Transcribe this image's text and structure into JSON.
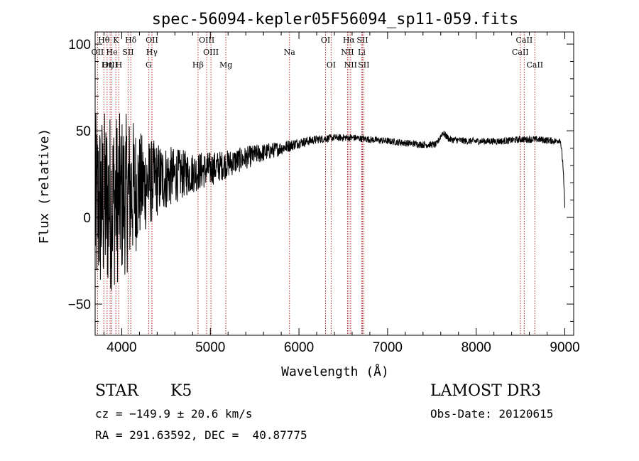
{
  "chart_data": {
    "type": "line",
    "title": "spec-56094-kepler05F56094_sp11-059.fits",
    "xlabel": "Wavelength (Å)",
    "ylabel": "Flux (relative)",
    "xlim": [
      3700,
      9100
    ],
    "ylim": [
      -68,
      107
    ],
    "xticks": [
      4000,
      5000,
      6000,
      7000,
      8000,
      9000
    ],
    "yticks": [
      -50,
      0,
      50,
      100
    ],
    "x_minor_step": 200,
    "y_minor_step": 10,
    "line_color": "#000000",
    "marker_color": "#b22222",
    "grid": false,
    "spectrum_anchors": {
      "x": [
        3700,
        3800,
        3900,
        4000,
        4100,
        4200,
        4300,
        4400,
        4600,
        4800,
        5000,
        5200,
        5500,
        5800,
        6000,
        6200,
        6400,
        6600,
        6800,
        7000,
        7200,
        7400,
        7550,
        7620,
        7700,
        7900,
        8100,
        8300,
        8500,
        8700,
        8900,
        8950,
        8980,
        9000
      ],
      "y": [
        5,
        8,
        10,
        12,
        15,
        18,
        20,
        22,
        24,
        26,
        28,
        31,
        36,
        40,
        43,
        45,
        46,
        46,
        45,
        44,
        43,
        42,
        42,
        49,
        45,
        44,
        44,
        44,
        45,
        45,
        44,
        45,
        30,
        5
      ],
      "noise": [
        55,
        55,
        52,
        48,
        45,
        32,
        26,
        22,
        16,
        12,
        10,
        8,
        6,
        4,
        3,
        2.5,
        2,
        2,
        2,
        2,
        2,
        2,
        2,
        2,
        2,
        2,
        2,
        2,
        2,
        2,
        2,
        2,
        2,
        2
      ]
    },
    "spectrum_samples": 1800,
    "line_markers": [
      {
        "label": "Hθ",
        "x": 3798,
        "row": 0
      },
      {
        "label": "K",
        "x": 3934,
        "row": 0
      },
      {
        "label": "Hδ",
        "x": 4102,
        "row": 0
      },
      {
        "label": "OII",
        "x": 4341,
        "row": 0
      },
      {
        "label": "OIII",
        "x": 4959,
        "row": 0
      },
      {
        "label": "OI",
        "x": 6300,
        "row": 0
      },
      {
        "label": "Hα",
        "x": 6563,
        "row": 0
      },
      {
        "label": "SII",
        "x": 6716,
        "row": 0
      },
      {
        "label": "CaII",
        "x": 8542,
        "row": 0
      },
      {
        "label": "OII",
        "x": 3727,
        "row": 1
      },
      {
        "label": "He",
        "x": 3889,
        "row": 1
      },
      {
        "label": "SII",
        "x": 4072,
        "row": 1
      },
      {
        "label": "Hγ",
        "x": 4340,
        "row": 1
      },
      {
        "label": "OIII",
        "x": 5007,
        "row": 1
      },
      {
        "label": "Na",
        "x": 5893,
        "row": 1
      },
      {
        "label": "NII",
        "x": 6548,
        "row": 1
      },
      {
        "label": "Li",
        "x": 6708,
        "row": 1
      },
      {
        "label": "CaII",
        "x": 8498,
        "row": 1
      },
      {
        "label": "OIII",
        "x": 3869,
        "row": 2
      },
      {
        "label": "Hη",
        "x": 3835,
        "row": 2
      },
      {
        "label": "H",
        "x": 3968,
        "row": 2
      },
      {
        "label": "G",
        "x": 4304,
        "row": 2
      },
      {
        "label": "Hβ",
        "x": 4861,
        "row": 2
      },
      {
        "label": "Mg",
        "x": 5175,
        "row": 2
      },
      {
        "label": "OI",
        "x": 6363,
        "row": 2
      },
      {
        "label": "NII",
        "x": 6583,
        "row": 2
      },
      {
        "label": "SII",
        "x": 6731,
        "row": 2
      },
      {
        "label": "CaII",
        "x": 8662,
        "row": 2
      }
    ]
  },
  "info": {
    "object_type": "STAR",
    "subclass": "K5",
    "survey": "LAMOST DR3",
    "velocity": "cz = −149.9 ± 20.6 km/s",
    "obs_date": "Obs-Date: 20120615",
    "coords": "RA = 291.63592, DEC =  40.87775"
  }
}
